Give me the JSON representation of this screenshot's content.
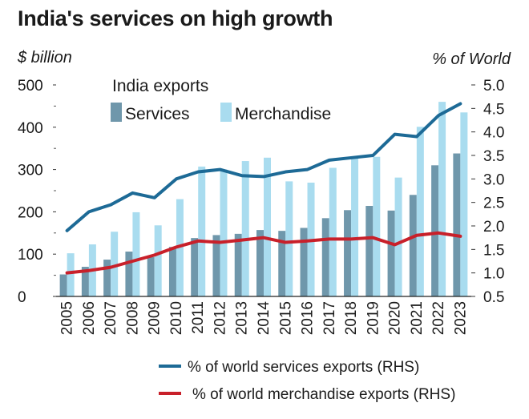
{
  "title": "India's services on high growth",
  "chart_data": {
    "type": "bar",
    "title": "India's services on high growth",
    "categories": [
      "2005",
      "2006",
      "2007",
      "2008",
      "2009",
      "2010",
      "2011",
      "2012",
      "2013",
      "2014",
      "2015",
      "2016",
      "2017",
      "2018",
      "2019",
      "2020",
      "2021",
      "2022",
      "2023"
    ],
    "ylabel": "$ billion",
    "y2label": "% of World",
    "ylim": [
      0,
      500
    ],
    "yticks": [
      "0",
      "100",
      "200",
      "300",
      "400",
      "500"
    ],
    "y2lim": [
      0.5,
      5.0
    ],
    "y2ticks": [
      "0.5",
      "1.0",
      "1.5",
      "2.0",
      "2.5",
      "3.0",
      "3.5",
      "4.0",
      "4.5",
      "5.0"
    ],
    "legend_title": "India exports",
    "series": [
      {
        "name": "Services",
        "kind": "bar",
        "axis": "left",
        "color": "#6f97ab",
        "values": [
          52,
          70,
          87,
          106,
          93,
          117,
          138,
          145,
          148,
          157,
          155,
          162,
          185,
          204,
          214,
          203,
          240,
          310,
          338
        ]
      },
      {
        "name": "Merchandise",
        "kind": "bar",
        "axis": "left",
        "color": "#a9dcef",
        "values": [
          102,
          123,
          153,
          199,
          168,
          230,
          307,
          300,
          320,
          328,
          272,
          269,
          304,
          330,
          330,
          281,
          401,
          460,
          435
        ]
      },
      {
        "name": "% of world services exports (RHS)",
        "kind": "line",
        "axis": "right",
        "color": "#1d6a96",
        "values": [
          1.9,
          2.3,
          2.45,
          2.7,
          2.6,
          3.0,
          3.15,
          3.2,
          3.07,
          3.05,
          3.15,
          3.2,
          3.4,
          3.45,
          3.5,
          3.95,
          3.9,
          4.35,
          4.6
        ]
      },
      {
        "name": "% of world merchandise exports (RHS)",
        "kind": "line",
        "axis": "right",
        "color": "#c8202a",
        "values": [
          1.0,
          1.05,
          1.12,
          1.25,
          1.38,
          1.55,
          1.68,
          1.65,
          1.7,
          1.75,
          1.65,
          1.68,
          1.72,
          1.72,
          1.75,
          1.6,
          1.8,
          1.85,
          1.78
        ]
      }
    ],
    "grid": false
  }
}
